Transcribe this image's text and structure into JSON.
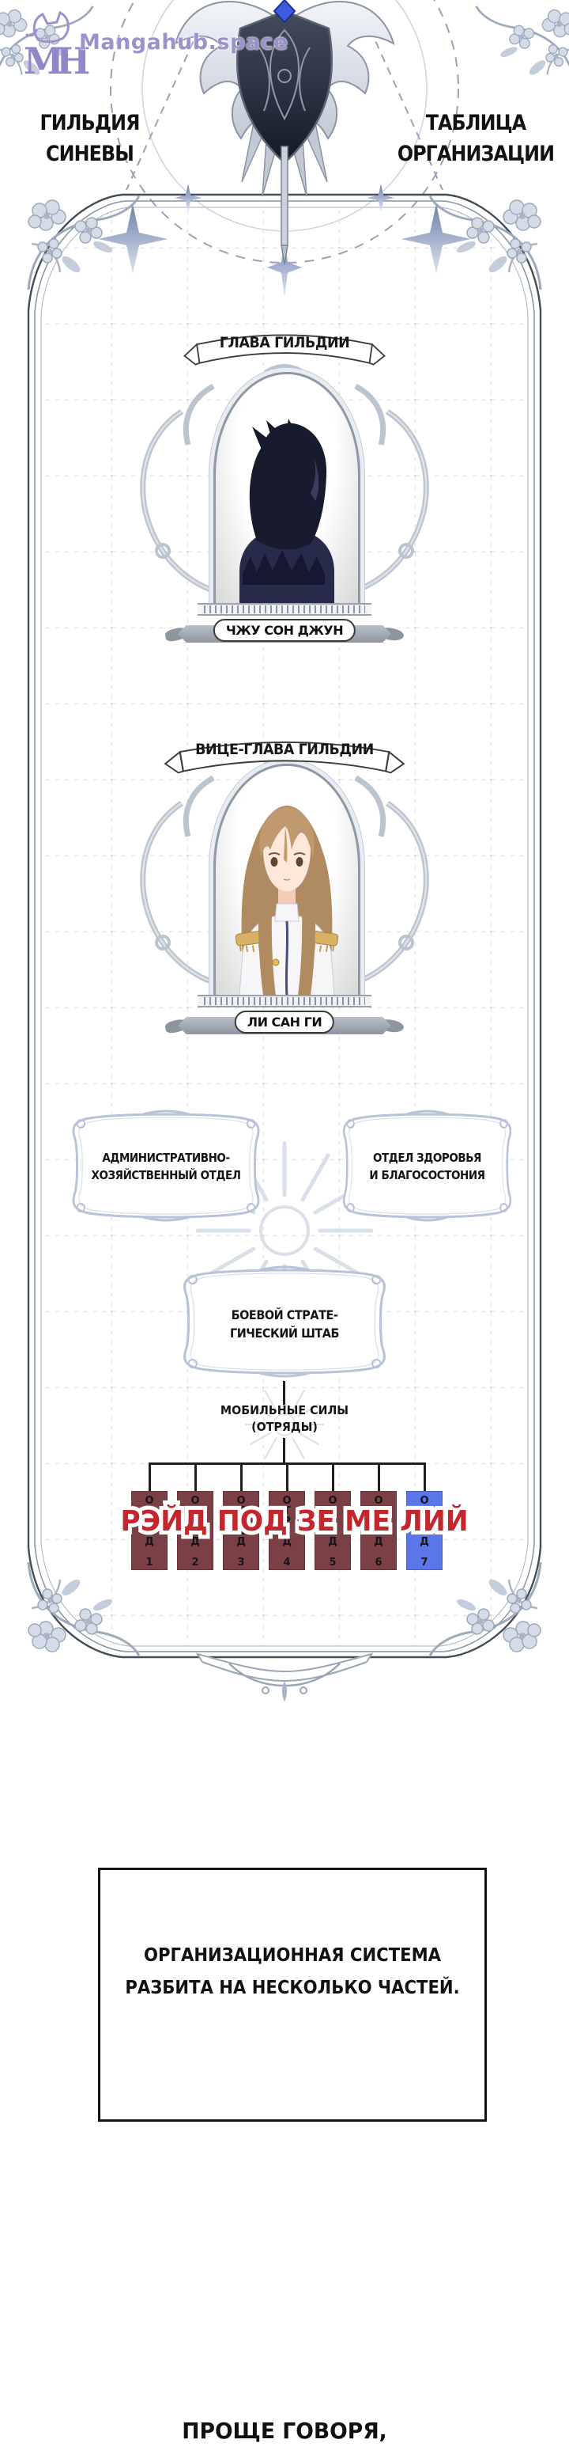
{
  "watermark": {
    "logo_text": "MH",
    "site": "Mangahub.space",
    "color": "#8b80c6"
  },
  "header": {
    "title_left": {
      "line1": "ГИЛЬДИЯ",
      "line2": "СИНЕВЫ"
    },
    "title_right": {
      "line1": "ТАБЛИЦА",
      "line2": "ОРГАНИЗАЦИИ"
    },
    "emblem_icon": "winged-shield-sword-emblem",
    "emblem_gem_color": "#3d5ae0"
  },
  "org_chart": {
    "leader": {
      "role_banner": "ГЛАВА ГИЛЬДИИ",
      "name": "ЧЖУ СОН ДЖУН",
      "portrait": "dark-haired-man-silhouette"
    },
    "vice_leader": {
      "role_banner": "ВИЦЕ-ГЛАВА ГИЛЬДИИ",
      "name": "ЛИ САН ГИ",
      "portrait": "long-brown-haired-officer-white-uniform"
    },
    "departments": [
      {
        "name_line1": "АДМИНИСТРАТИВНО-",
        "name_line2": "ХОЗЯЙСТВЕННЫЙ ОТДЕЛ"
      },
      {
        "name_line1": "ОТДЕЛ ЗДОРОВЬЯ",
        "name_line2": "И БЛАГОСОСТОНИЯ"
      }
    ],
    "combat_hq": {
      "name_line1": "БОЕВОЙ СТРАТЕ-",
      "name_line2": "ГИЧЕСКИЙ ШТАБ"
    },
    "mobile_forces": {
      "label_line1": "МОБИЛЬНЫЕ СИЛЫ",
      "label_line2": "(ОТРЯДЫ)"
    },
    "squads": [
      {
        "label": "ОТРЯД 1",
        "color": "#7b4045"
      },
      {
        "label": "ОТРЯД 2",
        "color": "#7b4045"
      },
      {
        "label": "ОТРЯД 3",
        "color": "#7b4045"
      },
      {
        "label": "ОТРЯД 4",
        "color": "#7b4045"
      },
      {
        "label": "ОТРЯД 5",
        "color": "#7b4045"
      },
      {
        "label": "ОТРЯД 6",
        "color": "#7b4045"
      },
      {
        "label": "ОТРЯД 7",
        "color": "#5b76e8"
      }
    ],
    "overlay": {
      "text": "РЭЙД ПОД ЗЕ МЕ ЛИЙ",
      "color": "#c1272d"
    }
  },
  "caption": {
    "line1": "ОРГАНИЗАЦИОННАЯ СИСТЕМА",
    "line2": "РАЗБИТА НА НЕСКОЛЬКО ЧАСТЕЙ."
  },
  "footer": {
    "text": "ПРОЩЕ ГОВОРЯ,"
  }
}
